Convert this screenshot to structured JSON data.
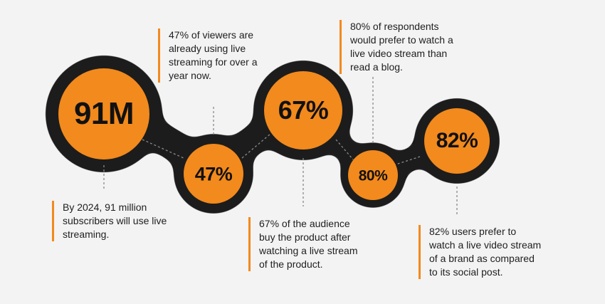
{
  "colors": {
    "background": "#f3f3f3",
    "dark_ring": "#1b1b1b",
    "accent_orange": "#f28a1d",
    "text": "#1e1e1e",
    "dashed_line": "#8a8a8a"
  },
  "stats": [
    {
      "value": "91M",
      "note_lines": [
        "By 2024, 91 million",
        "subscribers will use live",
        "streaming."
      ]
    },
    {
      "value": "47%",
      "note_lines": [
        "47% of viewers are",
        "already using live",
        "streaming for over a",
        "year now."
      ]
    },
    {
      "value": "67%",
      "note_lines": [
        "67% of the audience",
        "buy the product after",
        "watching a live stream",
        "of the product."
      ]
    },
    {
      "value": "80%",
      "note_lines": [
        "80% of respondents",
        "would prefer to watch a",
        "live video stream than",
        "read a blog."
      ]
    },
    {
      "value": "82%",
      "note_lines": [
        "82% users prefer to",
        "watch a live video stream",
        "of a brand as compared",
        "to its social post."
      ]
    }
  ]
}
